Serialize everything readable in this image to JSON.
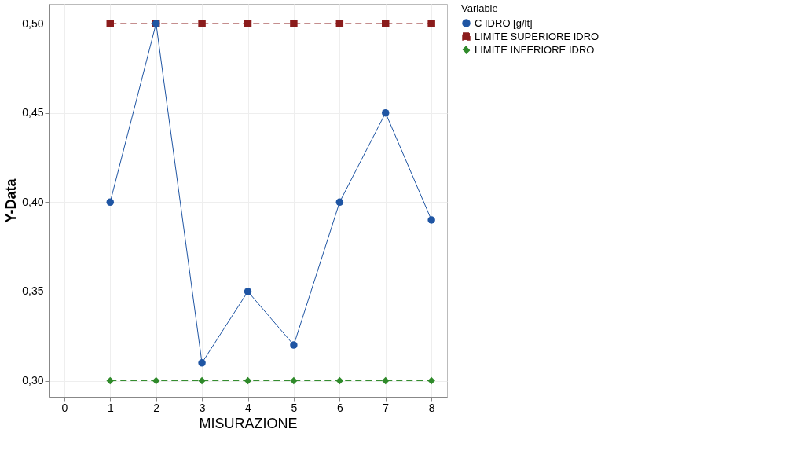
{
  "chart_data": {
    "type": "line",
    "xlabel": "MISURAZIONE",
    "ylabel": "Y-Data",
    "legend_title": "Variable",
    "legend": "top right",
    "grid": true,
    "x": [
      1,
      2,
      3,
      4,
      5,
      6,
      7,
      8
    ],
    "xlim": [
      -0.34,
      8.34
    ],
    "xticks": [
      0,
      1,
      2,
      3,
      4,
      5,
      6,
      7,
      8
    ],
    "ylim": [
      0.291,
      0.511
    ],
    "yticks": [
      {
        "value": 0.3,
        "label": "0,30"
      },
      {
        "value": 0.35,
        "label": "0,35"
      },
      {
        "value": 0.4,
        "label": "0,40"
      },
      {
        "value": 0.45,
        "label": "0,45"
      },
      {
        "value": 0.5,
        "label": "0,50"
      }
    ],
    "series": [
      {
        "name": "C IDRO [g/lt]",
        "color": "#1f55a3",
        "marker": "circle",
        "line_style": "solid",
        "values": [
          0.4,
          0.5,
          0.31,
          0.35,
          0.32,
          0.4,
          0.45,
          0.39
        ]
      },
      {
        "name": "LIMITE SUPERIORE IDRO",
        "color": "#8b1c1c",
        "marker": "square",
        "line_style": "dashed",
        "values": [
          0.5,
          0.5,
          0.5,
          0.5,
          0.5,
          0.5,
          0.5,
          0.5
        ]
      },
      {
        "name": "LIMITE INFERIORE IDRO",
        "color": "#2f8a2a",
        "marker": "diamond",
        "line_style": "dashed",
        "values": [
          0.3,
          0.3,
          0.3,
          0.3,
          0.3,
          0.3,
          0.3,
          0.3
        ]
      }
    ]
  }
}
